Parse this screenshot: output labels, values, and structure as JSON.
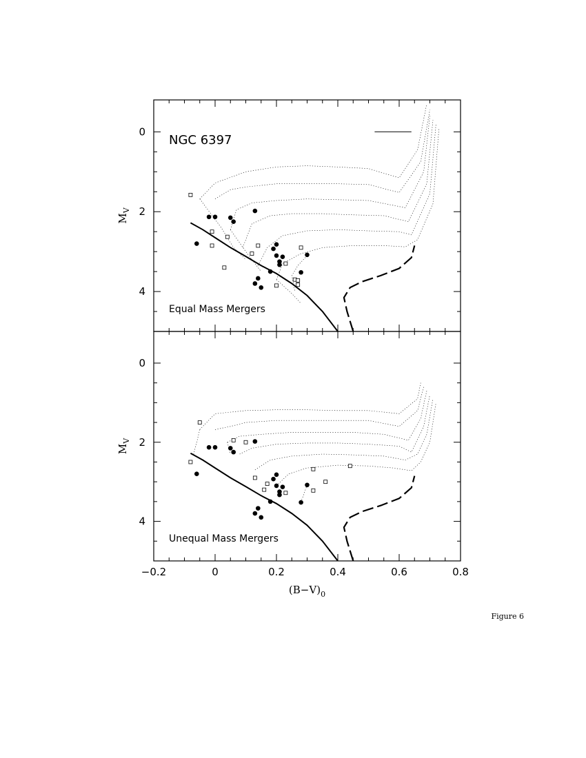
{
  "figure_label": "Figure 6",
  "chart_data": [
    {
      "type": "scatter",
      "title": "",
      "annotation": "NGC 6397",
      "panel_label": "Equal Mass Mergers",
      "xlabel": "(B−V)",
      "xlabel_sub": "0",
      "ylabel": "M",
      "ylabel_sub": "V",
      "xlim": [
        -0.2,
        0.8
      ],
      "ylim": [
        5,
        -0.8
      ],
      "y_inverted": true,
      "xticks": [
        -0.2,
        0,
        0.2,
        0.4,
        0.6,
        0.8
      ],
      "xtick_labels": [
        "",
        "",
        "",
        "",
        "",
        ""
      ],
      "yticks": [
        0,
        2,
        4
      ],
      "ytick_labels": [
        "0",
        "2",
        "4"
      ],
      "grid": false,
      "series": [
        {
          "marker": "filled-circle",
          "points": [
            [
              -0.06,
              2.8
            ],
            [
              -0.02,
              2.13
            ],
            [
              0.0,
              2.13
            ],
            [
              0.05,
              2.15
            ],
            [
              0.06,
              2.25
            ],
            [
              0.13,
              1.98
            ],
            [
              0.18,
              3.5
            ],
            [
              0.19,
              2.93
            ],
            [
              0.2,
              2.82
            ],
            [
              0.2,
              3.1
            ],
            [
              0.21,
              3.25
            ],
            [
              0.21,
              3.33
            ],
            [
              0.22,
              3.13
            ],
            [
              0.28,
              3.52
            ],
            [
              0.3,
              3.08
            ],
            [
              0.13,
              3.8
            ],
            [
              0.14,
              3.67
            ],
            [
              0.15,
              3.9
            ]
          ]
        },
        {
          "marker": "open-square",
          "points": [
            [
              -0.08,
              1.58
            ],
            [
              -0.01,
              2.5
            ],
            [
              -0.01,
              2.85
            ],
            [
              0.03,
              3.4
            ],
            [
              0.04,
              2.63
            ],
            [
              0.12,
              3.05
            ],
            [
              0.14,
              2.85
            ],
            [
              0.2,
              3.85
            ],
            [
              0.23,
              3.3
            ],
            [
              0.26,
              3.7
            ],
            [
              0.27,
              3.72
            ],
            [
              0.27,
              3.83
            ],
            [
              0.28,
              2.9
            ]
          ]
        }
      ],
      "main_sequence": [
        [
          -0.08,
          2.28
        ],
        [
          -0.04,
          2.45
        ],
        [
          0.0,
          2.65
        ],
        [
          0.05,
          2.9
        ],
        [
          0.1,
          3.12
        ],
        [
          0.15,
          3.35
        ],
        [
          0.2,
          3.55
        ],
        [
          0.25,
          3.8
        ],
        [
          0.3,
          4.1
        ],
        [
          0.35,
          4.5
        ],
        [
          0.4,
          5.0
        ]
      ],
      "giant_branch": [
        [
          0.45,
          5.0
        ],
        [
          0.43,
          4.5
        ],
        [
          0.42,
          4.15
        ],
        [
          0.44,
          3.9
        ],
        [
          0.48,
          3.75
        ],
        [
          0.54,
          3.6
        ],
        [
          0.6,
          3.42
        ],
        [
          0.64,
          3.15
        ],
        [
          0.65,
          2.85
        ]
      ],
      "reference_line": [
        [
          0.52,
          0.0
        ],
        [
          0.64,
          0.0
        ]
      ],
      "tracks": [
        [
          [
            -0.05,
            1.68
          ],
          [
            0.0,
            1.28
          ],
          [
            0.1,
            1.0
          ],
          [
            0.2,
            0.88
          ],
          [
            0.3,
            0.85
          ],
          [
            0.4,
            0.88
          ],
          [
            0.5,
            0.92
          ],
          [
            0.6,
            1.15
          ],
          [
            0.66,
            0.45
          ],
          [
            0.69,
            -0.7
          ]
        ],
        [
          [
            0.0,
            1.68
          ],
          [
            0.05,
            1.45
          ],
          [
            0.1,
            1.38
          ],
          [
            0.2,
            1.3
          ],
          [
            0.3,
            1.3
          ],
          [
            0.4,
            1.3
          ],
          [
            0.5,
            1.32
          ],
          [
            0.6,
            1.52
          ],
          [
            0.67,
            0.75
          ],
          [
            0.7,
            -0.55
          ]
        ],
        [
          [
            0.05,
            2.45
          ],
          [
            0.07,
            1.95
          ],
          [
            0.12,
            1.78
          ],
          [
            0.2,
            1.72
          ],
          [
            0.3,
            1.68
          ],
          [
            0.4,
            1.7
          ],
          [
            0.5,
            1.72
          ],
          [
            0.62,
            1.9
          ],
          [
            0.68,
            1.0
          ],
          [
            0.7,
            -0.4
          ]
        ],
        [
          [
            0.09,
            2.9
          ],
          [
            0.12,
            2.3
          ],
          [
            0.18,
            2.1
          ],
          [
            0.25,
            2.05
          ],
          [
            0.35,
            2.05
          ],
          [
            0.45,
            2.08
          ],
          [
            0.55,
            2.1
          ],
          [
            0.63,
            2.25
          ],
          [
            0.69,
            1.3
          ],
          [
            0.71,
            -0.3
          ]
        ],
        [
          [
            0.14,
            3.35
          ],
          [
            0.17,
            2.9
          ],
          [
            0.22,
            2.6
          ],
          [
            0.3,
            2.48
          ],
          [
            0.4,
            2.45
          ],
          [
            0.5,
            2.48
          ],
          [
            0.6,
            2.5
          ],
          [
            0.64,
            2.58
          ],
          [
            0.7,
            1.55
          ],
          [
            0.72,
            -0.2
          ]
        ],
        [
          [
            0.2,
            3.7
          ],
          [
            0.22,
            3.3
          ],
          [
            0.28,
            3.05
          ],
          [
            0.35,
            2.9
          ],
          [
            0.45,
            2.85
          ],
          [
            0.55,
            2.85
          ],
          [
            0.62,
            2.88
          ],
          [
            0.66,
            2.7
          ],
          [
            0.71,
            1.8
          ],
          [
            0.73,
            -0.1
          ]
        ]
      ],
      "track_tails": [
        [
          [
            -0.05,
            1.68
          ],
          [
            0.02,
            2.4
          ],
          [
            0.06,
            2.9
          ],
          [
            0.1,
            3.2
          ]
        ],
        [
          [
            0.05,
            2.45
          ],
          [
            0.1,
            3.0
          ],
          [
            0.15,
            3.5
          ]
        ],
        [
          [
            0.2,
            3.7
          ],
          [
            0.25,
            4.05
          ],
          [
            0.28,
            4.3
          ]
        ],
        [
          [
            0.3,
            3.1
          ],
          [
            0.27,
            3.35
          ],
          [
            0.25,
            3.6
          ],
          [
            0.26,
            4.0
          ]
        ]
      ]
    },
    {
      "type": "scatter",
      "title": "",
      "panel_label": "Unequal Mass Mergers",
      "xlabel": "(B−V)",
      "xlabel_sub": "0",
      "ylabel": "M",
      "ylabel_sub": "V",
      "xlim": [
        -0.2,
        0.8
      ],
      "ylim": [
        5,
        -0.8
      ],
      "y_inverted": true,
      "xticks": [
        -0.2,
        0,
        0.2,
        0.4,
        0.6,
        0.8
      ],
      "xtick_labels": [
        "−0.2",
        "0",
        "0.2",
        "0.4",
        "0.6",
        "0.8"
      ],
      "yticks": [
        0,
        2,
        4
      ],
      "ytick_labels": [
        "0",
        "2",
        "4"
      ],
      "grid": false,
      "series": [
        {
          "marker": "filled-circle",
          "points": [
            [
              -0.06,
              2.8
            ],
            [
              -0.02,
              2.13
            ],
            [
              0.0,
              2.13
            ],
            [
              0.05,
              2.15
            ],
            [
              0.06,
              2.25
            ],
            [
              0.13,
              1.98
            ],
            [
              0.18,
              3.5
            ],
            [
              0.19,
              2.93
            ],
            [
              0.2,
              2.82
            ],
            [
              0.2,
              3.1
            ],
            [
              0.21,
              3.25
            ],
            [
              0.21,
              3.33
            ],
            [
              0.22,
              3.13
            ],
            [
              0.28,
              3.52
            ],
            [
              0.3,
              3.08
            ],
            [
              0.13,
              3.8
            ],
            [
              0.14,
              3.67
            ],
            [
              0.15,
              3.9
            ]
          ]
        },
        {
          "marker": "open-square",
          "points": [
            [
              -0.08,
              2.5
            ],
            [
              -0.05,
              1.5
            ],
            [
              0.06,
              1.95
            ],
            [
              0.1,
              2.0
            ],
            [
              0.13,
              2.9
            ],
            [
              0.16,
              3.2
            ],
            [
              0.17,
              3.05
            ],
            [
              0.23,
              3.28
            ],
            [
              0.32,
              2.68
            ],
            [
              0.32,
              3.22
            ],
            [
              0.36,
              3.0
            ],
            [
              0.44,
              2.6
            ]
          ]
        }
      ],
      "main_sequence": [
        [
          -0.08,
          2.28
        ],
        [
          -0.04,
          2.45
        ],
        [
          0.0,
          2.65
        ],
        [
          0.05,
          2.9
        ],
        [
          0.1,
          3.12
        ],
        [
          0.15,
          3.35
        ],
        [
          0.2,
          3.55
        ],
        [
          0.25,
          3.8
        ],
        [
          0.3,
          4.1
        ],
        [
          0.35,
          4.5
        ],
        [
          0.4,
          5.0
        ]
      ],
      "giant_branch": [
        [
          0.45,
          5.0
        ],
        [
          0.43,
          4.5
        ],
        [
          0.42,
          4.15
        ],
        [
          0.44,
          3.9
        ],
        [
          0.48,
          3.75
        ],
        [
          0.54,
          3.6
        ],
        [
          0.6,
          3.42
        ],
        [
          0.64,
          3.15
        ],
        [
          0.65,
          2.85
        ]
      ],
      "reference_line": [],
      "tracks": [
        [
          [
            -0.05,
            1.68
          ],
          [
            0.0,
            1.28
          ],
          [
            0.1,
            1.2
          ],
          [
            0.2,
            1.18
          ],
          [
            0.3,
            1.18
          ],
          [
            0.4,
            1.2
          ],
          [
            0.5,
            1.2
          ],
          [
            0.6,
            1.28
          ],
          [
            0.66,
            0.9
          ],
          [
            0.67,
            0.5
          ]
        ],
        [
          [
            0.0,
            1.68
          ],
          [
            0.05,
            1.6
          ],
          [
            0.1,
            1.5
          ],
          [
            0.2,
            1.45
          ],
          [
            0.3,
            1.45
          ],
          [
            0.4,
            1.45
          ],
          [
            0.5,
            1.45
          ],
          [
            0.6,
            1.6
          ],
          [
            0.66,
            1.2
          ],
          [
            0.68,
            0.6
          ]
        ],
        [
          [
            0.04,
            2.0
          ],
          [
            0.08,
            1.85
          ],
          [
            0.15,
            1.8
          ],
          [
            0.25,
            1.75
          ],
          [
            0.35,
            1.75
          ],
          [
            0.45,
            1.75
          ],
          [
            0.55,
            1.8
          ],
          [
            0.63,
            1.95
          ],
          [
            0.67,
            1.4
          ],
          [
            0.69,
            0.7
          ]
        ],
        [
          [
            0.08,
            2.3
          ],
          [
            0.12,
            2.15
          ],
          [
            0.2,
            2.05
          ],
          [
            0.3,
            2.02
          ],
          [
            0.4,
            2.02
          ],
          [
            0.5,
            2.05
          ],
          [
            0.6,
            2.1
          ],
          [
            0.64,
            2.25
          ],
          [
            0.68,
            1.6
          ],
          [
            0.7,
            0.8
          ]
        ],
        [
          [
            0.13,
            2.7
          ],
          [
            0.18,
            2.45
          ],
          [
            0.25,
            2.35
          ],
          [
            0.35,
            2.3
          ],
          [
            0.45,
            2.32
          ],
          [
            0.55,
            2.35
          ],
          [
            0.62,
            2.45
          ],
          [
            0.66,
            2.3
          ],
          [
            0.69,
            1.8
          ],
          [
            0.71,
            0.9
          ]
        ],
        [
          [
            0.2,
            3.1
          ],
          [
            0.24,
            2.8
          ],
          [
            0.3,
            2.65
          ],
          [
            0.4,
            2.58
          ],
          [
            0.5,
            2.6
          ],
          [
            0.58,
            2.65
          ],
          [
            0.64,
            2.72
          ],
          [
            0.67,
            2.5
          ],
          [
            0.7,
            2.0
          ],
          [
            0.72,
            1.0
          ]
        ]
      ],
      "track_tails": [
        [
          [
            -0.05,
            1.68
          ],
          [
            -0.06,
            2.0
          ],
          [
            -0.07,
            2.3
          ]
        ],
        [
          [
            0.04,
            2.0
          ],
          [
            0.05,
            2.3
          ]
        ],
        [
          [
            0.3,
            3.08
          ],
          [
            0.29,
            3.3
          ],
          [
            0.28,
            3.5
          ]
        ]
      ]
    }
  ]
}
